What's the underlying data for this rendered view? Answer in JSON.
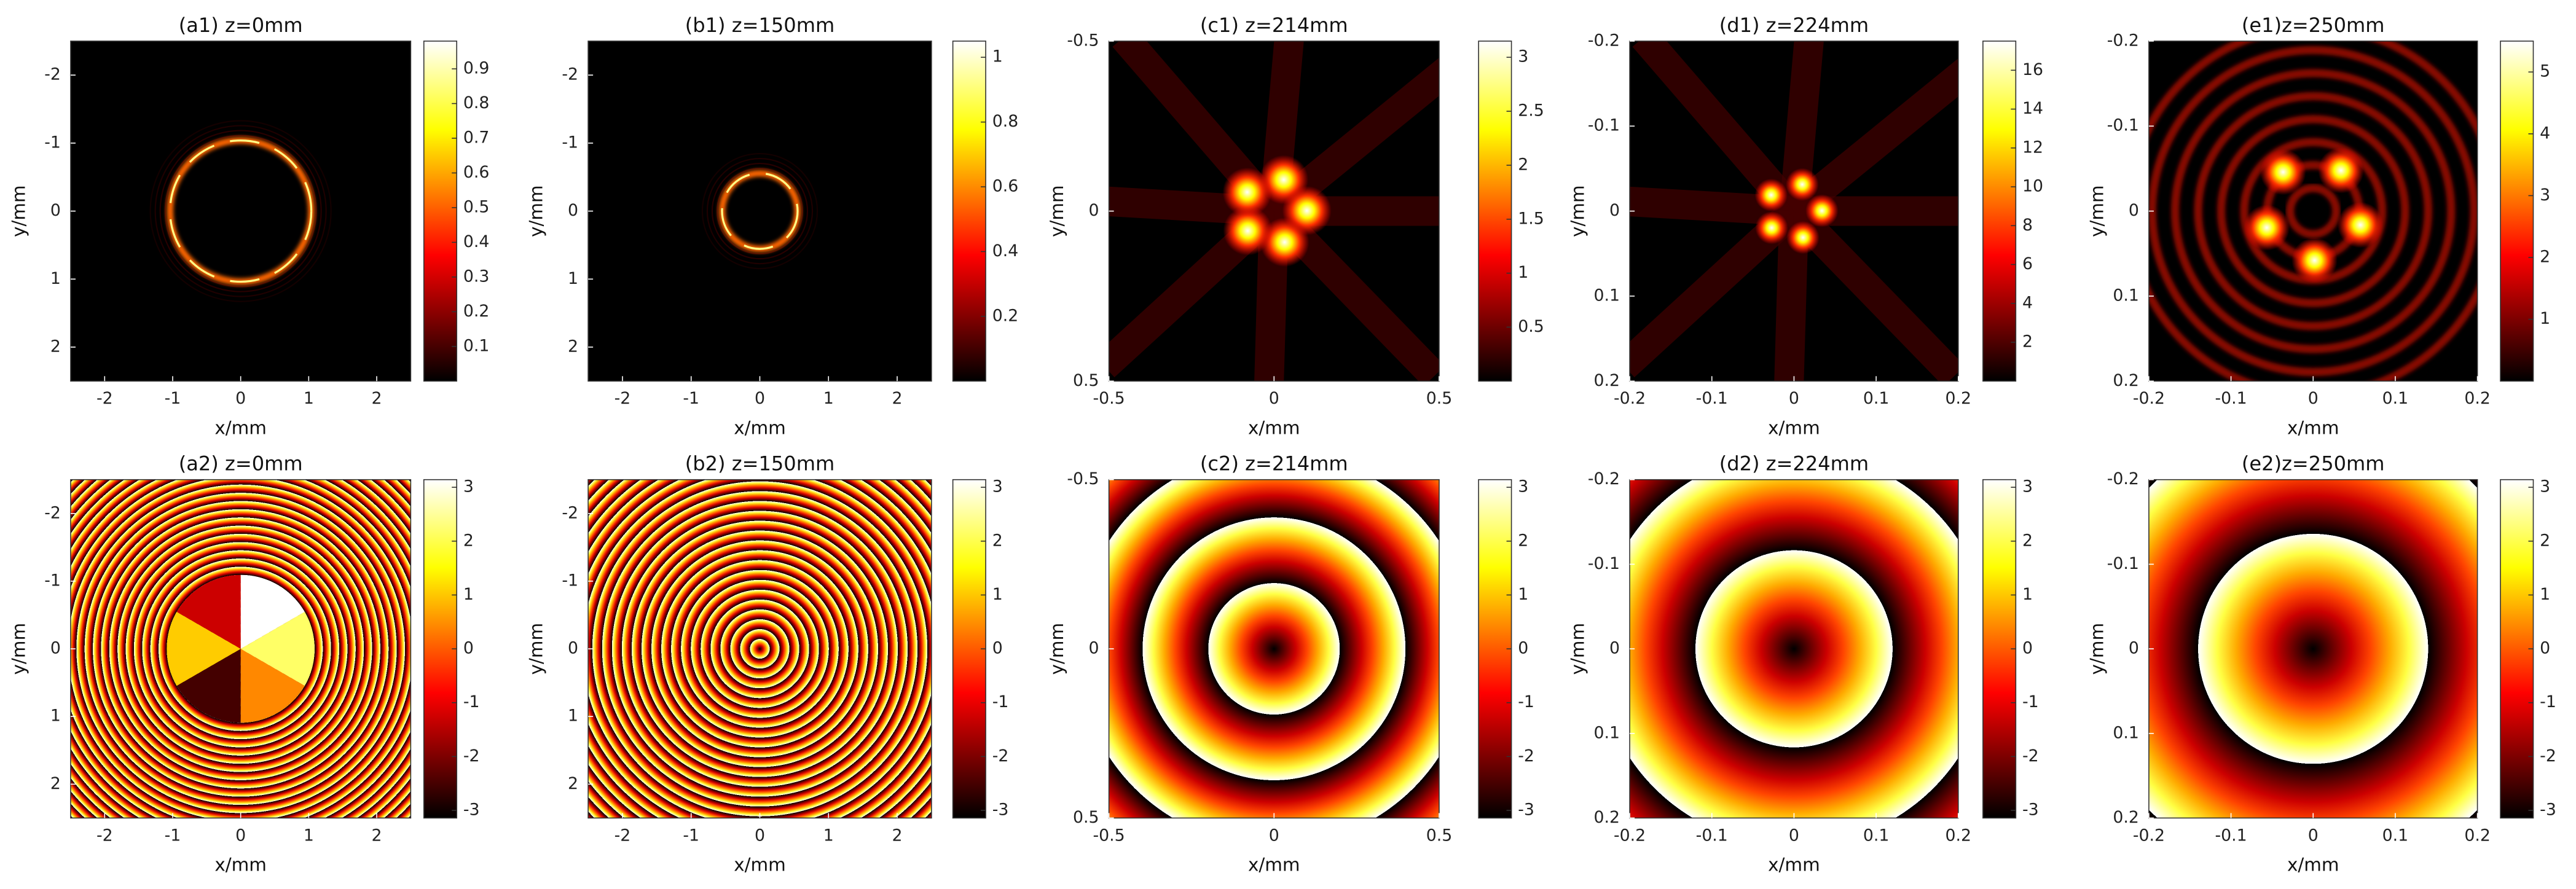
{
  "chart_data": [
    {
      "type": "heatmap",
      "title": "(a1) z=0mm",
      "xlabel": "x/mm",
      "ylabel": "y/mm",
      "xlim": [
        -2.5,
        2.5
      ],
      "ylim": [
        -2.5,
        2.5
      ],
      "y_reversed": true,
      "xticks": [
        -2,
        -1,
        0,
        1,
        2
      ],
      "yticks": [
        -2,
        -1,
        0,
        1,
        2
      ],
      "colormap": "hot",
      "colorbar": {
        "lim": [
          0,
          0.98
        ],
        "ticks": [
          0.1,
          0.2,
          0.3,
          0.4,
          0.5,
          0.6,
          0.7,
          0.8,
          0.9
        ]
      }
    },
    {
      "type": "heatmap",
      "title": "(b1) z=150mm",
      "xlabel": "x/mm",
      "ylabel": "y/mm",
      "xlim": [
        -2.5,
        2.5
      ],
      "ylim": [
        -2.5,
        2.5
      ],
      "y_reversed": true,
      "xticks": [
        -2,
        -1,
        0,
        1,
        2
      ],
      "yticks": [
        -2,
        -1,
        0,
        1,
        2
      ],
      "colormap": "hot",
      "colorbar": {
        "lim": [
          0,
          1.05
        ],
        "ticks": [
          0.2,
          0.4,
          0.6,
          0.8,
          1
        ]
      }
    },
    {
      "type": "heatmap",
      "title": "(c1) z=214mm",
      "xlabel": "x/mm",
      "ylabel": "y/mm",
      "xlim": [
        -0.5,
        0.5
      ],
      "ylim": [
        -0.5,
        0.5
      ],
      "y_reversed": true,
      "xticks": [
        -0.5,
        0,
        0.5
      ],
      "yticks": [
        -0.5,
        0,
        0.5
      ],
      "colormap": "hot",
      "colorbar": {
        "lim": [
          0,
          3.15
        ],
        "ticks": [
          0.5,
          1,
          1.5,
          2,
          2.5,
          3
        ]
      }
    },
    {
      "type": "heatmap",
      "title": "(d1) z=224mm",
      "xlabel": "x/mm",
      "ylabel": "y/mm",
      "xlim": [
        -0.2,
        0.2
      ],
      "ylim": [
        -0.2,
        0.2
      ],
      "y_reversed": true,
      "xticks": [
        -0.2,
        -0.1,
        0,
        0.1,
        0.2
      ],
      "yticks": [
        -0.2,
        -0.1,
        0,
        0.1,
        0.2
      ],
      "colormap": "hot",
      "colorbar": {
        "lim": [
          0,
          17.5
        ],
        "ticks": [
          2,
          4,
          6,
          8,
          10,
          12,
          14,
          16
        ]
      }
    },
    {
      "type": "heatmap",
      "title": "(e1)z=250mm",
      "xlabel": "x/mm",
      "ylabel": "y/mm",
      "xlim": [
        -0.2,
        0.2
      ],
      "ylim": [
        -0.2,
        0.2
      ],
      "y_reversed": true,
      "xticks": [
        -0.2,
        -0.1,
        0,
        0.1,
        0.2
      ],
      "yticks": [
        -0.2,
        -0.1,
        0,
        0.1,
        0.2
      ],
      "colormap": "hot",
      "colorbar": {
        "lim": [
          0,
          5.5
        ],
        "ticks": [
          1,
          2,
          3,
          4,
          5
        ]
      }
    },
    {
      "type": "heatmap",
      "title": "(a2) z=0mm",
      "xlabel": "x/mm",
      "ylabel": "y/mm",
      "xlim": [
        -2.5,
        2.5
      ],
      "ylim": [
        -2.5,
        2.5
      ],
      "y_reversed": true,
      "xticks": [
        -2,
        -1,
        0,
        1,
        2
      ],
      "yticks": [
        -2,
        -1,
        0,
        1,
        2
      ],
      "colormap": "hot",
      "colorbar": {
        "lim": [
          -3.1416,
          3.1416
        ],
        "ticks": [
          -3,
          -2,
          -1,
          0,
          1,
          2,
          3
        ]
      }
    },
    {
      "type": "heatmap",
      "title": "(b2) z=150mm",
      "xlabel": "x/mm",
      "ylabel": "y/mm",
      "xlim": [
        -2.5,
        2.5
      ],
      "ylim": [
        -2.5,
        2.5
      ],
      "y_reversed": true,
      "xticks": [
        -2,
        -1,
        0,
        1,
        2
      ],
      "yticks": [
        -2,
        -1,
        0,
        1,
        2
      ],
      "colormap": "hot",
      "colorbar": {
        "lim": [
          -3.1416,
          3.1416
        ],
        "ticks": [
          -3,
          -2,
          -1,
          0,
          1,
          2,
          3
        ]
      }
    },
    {
      "type": "heatmap",
      "title": "(c2) z=214mm",
      "xlabel": "x/mm",
      "ylabel": "y/mm",
      "xlim": [
        -0.5,
        0.5
      ],
      "ylim": [
        -0.5,
        0.5
      ],
      "y_reversed": true,
      "xticks": [
        -0.5,
        0,
        0.5
      ],
      "yticks": [
        -0.5,
        0,
        0.5
      ],
      "colormap": "hot",
      "colorbar": {
        "lim": [
          -3.1416,
          3.1416
        ],
        "ticks": [
          -3,
          -2,
          -1,
          0,
          1,
          2,
          3
        ]
      }
    },
    {
      "type": "heatmap",
      "title": "(d2) z=224mm",
      "xlabel": "x/mm",
      "ylabel": "y/mm",
      "xlim": [
        -0.2,
        0.2
      ],
      "ylim": [
        -0.2,
        0.2
      ],
      "y_reversed": true,
      "xticks": [
        -0.2,
        -0.1,
        0,
        0.1,
        0.2
      ],
      "yticks": [
        -0.2,
        -0.1,
        0,
        0.1,
        0.2
      ],
      "colormap": "hot",
      "colorbar": {
        "lim": [
          -3.1416,
          3.1416
        ],
        "ticks": [
          -3,
          -2,
          -1,
          0,
          1,
          2,
          3
        ]
      }
    },
    {
      "type": "heatmap",
      "title": "(e2)z=250mm",
      "xlabel": "x/mm",
      "ylabel": "y/mm",
      "xlim": [
        -0.2,
        0.2
      ],
      "ylim": [
        -0.2,
        0.2
      ],
      "y_reversed": true,
      "xticks": [
        -0.2,
        -0.1,
        0,
        0.1,
        0.2
      ],
      "yticks": [
        -0.2,
        -0.1,
        0,
        0.1,
        0.2
      ],
      "colormap": "hot",
      "colorbar": {
        "lim": [
          -3.1416,
          3.1416
        ],
        "ticks": [
          -3,
          -2,
          -1,
          0,
          1,
          2,
          3
        ]
      }
    }
  ]
}
